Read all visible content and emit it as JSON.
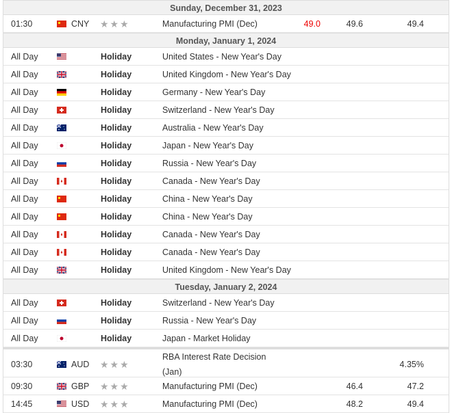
{
  "days": [
    {
      "date": "Sunday, December 31, 2023",
      "events": [
        {
          "time": "01:30",
          "flag": "cn",
          "currency": "CNY",
          "importance": 3,
          "event": "Manufacturing PMI (Dec)",
          "actual": "49.0",
          "forecast": "49.6",
          "previous": "49.4"
        }
      ]
    },
    {
      "date": "Monday, January 1, 2024",
      "events": [
        {
          "time": "All Day",
          "flag": "us",
          "type": "Holiday",
          "event": "United States - New Year's Day"
        },
        {
          "time": "All Day",
          "flag": "gb",
          "type": "Holiday",
          "event": "United Kingdom - New Year's Day"
        },
        {
          "time": "All Day",
          "flag": "de",
          "type": "Holiday",
          "event": "Germany - New Year's Day"
        },
        {
          "time": "All Day",
          "flag": "ch",
          "type": "Holiday",
          "event": "Switzerland - New Year's Day"
        },
        {
          "time": "All Day",
          "flag": "au",
          "type": "Holiday",
          "event": "Australia - New Year's Day"
        },
        {
          "time": "All Day",
          "flag": "jp",
          "type": "Holiday",
          "event": "Japan - New Year's Day"
        },
        {
          "time": "All Day",
          "flag": "ru",
          "type": "Holiday",
          "event": "Russia - New Year's Day"
        },
        {
          "time": "All Day",
          "flag": "ca",
          "type": "Holiday",
          "event": "Canada - New Year's Day"
        },
        {
          "time": "All Day",
          "flag": "cn",
          "type": "Holiday",
          "event": "China - New Year's Day"
        },
        {
          "time": "All Day",
          "flag": "cn",
          "type": "Holiday",
          "event": "China - New Year's Day"
        },
        {
          "time": "All Day",
          "flag": "ca",
          "type": "Holiday",
          "event": "Canada - New Year's Day"
        },
        {
          "time": "All Day",
          "flag": "ca",
          "type": "Holiday",
          "event": "Canada - New Year's Day"
        },
        {
          "time": "All Day",
          "flag": "gb",
          "type": "Holiday",
          "event": "United Kingdom - New Year's Day"
        }
      ]
    },
    {
      "date": "Tuesday, January 2, 2024",
      "events": [
        {
          "time": "All Day",
          "flag": "ch",
          "type": "Holiday",
          "event": "Switzerland - New Year's Day"
        },
        {
          "time": "All Day",
          "flag": "ru",
          "type": "Holiday",
          "event": "Russia - New Year's Day"
        },
        {
          "time": "All Day",
          "flag": "jp",
          "type": "Holiday",
          "event": "Japan - Market Holiday"
        },
        {
          "time": "03:30",
          "flag": "au",
          "currency": "AUD",
          "importance": 3,
          "event": "RBA Interest Rate Decision (Jan)",
          "actual": "",
          "forecast": "",
          "previous": "4.35%",
          "tall": true,
          "sep": true
        },
        {
          "time": "09:30",
          "flag": "gb",
          "currency": "GBP",
          "importance": 3,
          "event": "Manufacturing PMI (Dec)",
          "actual": "",
          "forecast": "46.4",
          "previous": "47.2"
        },
        {
          "time": "14:45",
          "flag": "us",
          "currency": "USD",
          "importance": 3,
          "event": "Manufacturing PMI (Dec)",
          "actual": "",
          "forecast": "48.2",
          "previous": "49.4"
        }
      ]
    }
  ],
  "colors": {
    "actual_negative": "#e00000",
    "header_bg": "#f1f1f1",
    "star": "#aaaaaa"
  }
}
